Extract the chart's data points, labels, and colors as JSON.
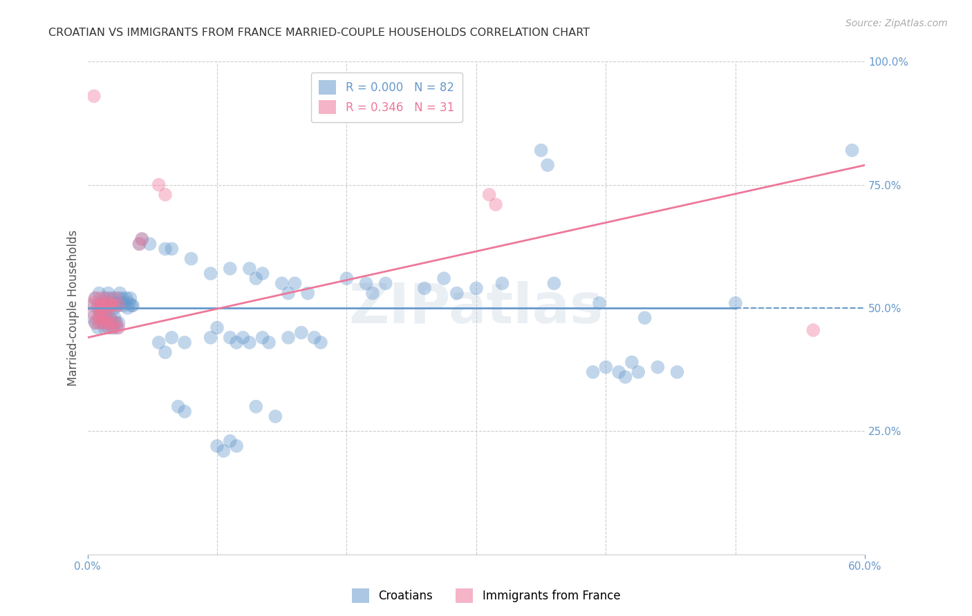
{
  "title": "CROATIAN VS IMMIGRANTS FROM FRANCE MARRIED-COUPLE HOUSEHOLDS CORRELATION CHART",
  "source": "Source: ZipAtlas.com",
  "ylabel": "Married-couple Households",
  "xlim": [
    0.0,
    0.6
  ],
  "ylim": [
    0.0,
    1.0
  ],
  "blue_line_solid": {
    "x": [
      0.0,
      0.5
    ],
    "y": [
      0.5,
      0.5
    ]
  },
  "blue_line_dashed": {
    "x": [
      0.5,
      0.6
    ],
    "y": [
      0.5,
      0.5
    ]
  },
  "pink_line": {
    "x": [
      0.0,
      0.6
    ],
    "y": [
      0.44,
      0.79
    ]
  },
  "blue_scatter": [
    [
      0.004,
      0.505
    ],
    [
      0.006,
      0.52
    ],
    [
      0.008,
      0.5
    ],
    [
      0.009,
      0.53
    ],
    [
      0.01,
      0.51
    ],
    [
      0.011,
      0.49
    ],
    [
      0.012,
      0.505
    ],
    [
      0.013,
      0.52
    ],
    [
      0.014,
      0.5
    ],
    [
      0.015,
      0.51
    ],
    [
      0.016,
      0.53
    ],
    [
      0.017,
      0.52
    ],
    [
      0.018,
      0.505
    ],
    [
      0.019,
      0.51
    ],
    [
      0.02,
      0.52
    ],
    [
      0.021,
      0.5
    ],
    [
      0.022,
      0.51
    ],
    [
      0.023,
      0.505
    ],
    [
      0.024,
      0.52
    ],
    [
      0.025,
      0.53
    ],
    [
      0.026,
      0.51
    ],
    [
      0.027,
      0.52
    ],
    [
      0.028,
      0.505
    ],
    [
      0.029,
      0.51
    ],
    [
      0.03,
      0.52
    ],
    [
      0.031,
      0.5
    ],
    [
      0.032,
      0.51
    ],
    [
      0.033,
      0.52
    ],
    [
      0.034,
      0.505
    ],
    [
      0.035,
      0.505
    ],
    [
      0.004,
      0.48
    ],
    [
      0.006,
      0.47
    ],
    [
      0.008,
      0.46
    ],
    [
      0.009,
      0.48
    ],
    [
      0.01,
      0.49
    ],
    [
      0.011,
      0.47
    ],
    [
      0.012,
      0.48
    ],
    [
      0.013,
      0.46
    ],
    [
      0.014,
      0.49
    ],
    [
      0.015,
      0.47
    ],
    [
      0.016,
      0.48
    ],
    [
      0.017,
      0.46
    ],
    [
      0.018,
      0.48
    ],
    [
      0.019,
      0.47
    ],
    [
      0.02,
      0.46
    ],
    [
      0.021,
      0.48
    ],
    [
      0.022,
      0.47
    ],
    [
      0.023,
      0.46
    ],
    [
      0.024,
      0.47
    ],
    [
      0.04,
      0.63
    ],
    [
      0.042,
      0.64
    ],
    [
      0.048,
      0.63
    ],
    [
      0.06,
      0.62
    ],
    [
      0.065,
      0.62
    ],
    [
      0.08,
      0.6
    ],
    [
      0.095,
      0.57
    ],
    [
      0.11,
      0.58
    ],
    [
      0.125,
      0.58
    ],
    [
      0.13,
      0.56
    ],
    [
      0.135,
      0.57
    ],
    [
      0.15,
      0.55
    ],
    [
      0.155,
      0.53
    ],
    [
      0.16,
      0.55
    ],
    [
      0.17,
      0.53
    ],
    [
      0.2,
      0.56
    ],
    [
      0.215,
      0.55
    ],
    [
      0.22,
      0.53
    ],
    [
      0.23,
      0.55
    ],
    [
      0.26,
      0.54
    ],
    [
      0.275,
      0.56
    ],
    [
      0.285,
      0.53
    ],
    [
      0.3,
      0.54
    ],
    [
      0.32,
      0.55
    ],
    [
      0.36,
      0.55
    ],
    [
      0.395,
      0.51
    ],
    [
      0.43,
      0.48
    ],
    [
      0.5,
      0.51
    ],
    [
      0.35,
      0.82
    ],
    [
      0.355,
      0.79
    ],
    [
      0.59,
      0.82
    ],
    [
      0.055,
      0.43
    ],
    [
      0.06,
      0.41
    ],
    [
      0.065,
      0.44
    ],
    [
      0.075,
      0.43
    ],
    [
      0.095,
      0.44
    ],
    [
      0.1,
      0.46
    ],
    [
      0.11,
      0.44
    ],
    [
      0.115,
      0.43
    ],
    [
      0.12,
      0.44
    ],
    [
      0.125,
      0.43
    ],
    [
      0.135,
      0.44
    ],
    [
      0.14,
      0.43
    ],
    [
      0.155,
      0.44
    ],
    [
      0.165,
      0.45
    ],
    [
      0.175,
      0.44
    ],
    [
      0.18,
      0.43
    ],
    [
      0.39,
      0.37
    ],
    [
      0.4,
      0.38
    ],
    [
      0.41,
      0.37
    ],
    [
      0.415,
      0.36
    ],
    [
      0.44,
      0.38
    ],
    [
      0.455,
      0.37
    ],
    [
      0.07,
      0.3
    ],
    [
      0.075,
      0.29
    ],
    [
      0.13,
      0.3
    ],
    [
      0.145,
      0.28
    ],
    [
      0.1,
      0.22
    ],
    [
      0.105,
      0.21
    ],
    [
      0.11,
      0.23
    ],
    [
      0.115,
      0.22
    ],
    [
      0.42,
      0.39
    ],
    [
      0.425,
      0.37
    ]
  ],
  "pink_scatter": [
    [
      0.005,
      0.93
    ],
    [
      0.004,
      0.51
    ],
    [
      0.006,
      0.52
    ],
    [
      0.008,
      0.505
    ],
    [
      0.009,
      0.5
    ],
    [
      0.01,
      0.52
    ],
    [
      0.011,
      0.5
    ],
    [
      0.012,
      0.51
    ],
    [
      0.013,
      0.505
    ],
    [
      0.015,
      0.52
    ],
    [
      0.016,
      0.5
    ],
    [
      0.017,
      0.51
    ],
    [
      0.018,
      0.505
    ],
    [
      0.02,
      0.505
    ],
    [
      0.022,
      0.52
    ],
    [
      0.024,
      0.505
    ],
    [
      0.004,
      0.49
    ],
    [
      0.006,
      0.47
    ],
    [
      0.008,
      0.48
    ],
    [
      0.009,
      0.47
    ],
    [
      0.01,
      0.49
    ],
    [
      0.011,
      0.48
    ],
    [
      0.012,
      0.47
    ],
    [
      0.013,
      0.48
    ],
    [
      0.015,
      0.47
    ],
    [
      0.016,
      0.46
    ],
    [
      0.017,
      0.48
    ],
    [
      0.018,
      0.47
    ],
    [
      0.02,
      0.46
    ],
    [
      0.022,
      0.47
    ],
    [
      0.024,
      0.46
    ],
    [
      0.04,
      0.63
    ],
    [
      0.042,
      0.64
    ],
    [
      0.055,
      0.75
    ],
    [
      0.06,
      0.73
    ],
    [
      0.31,
      0.73
    ],
    [
      0.315,
      0.71
    ],
    [
      0.56,
      0.455
    ]
  ],
  "watermark_text": "ZIPatlas",
  "title_color": "#333333",
  "blue_color": "#6699cc",
  "pink_color": "#ee7799",
  "axis_color": "#6699cc",
  "grid_color": "#cccccc",
  "background_color": "#ffffff"
}
